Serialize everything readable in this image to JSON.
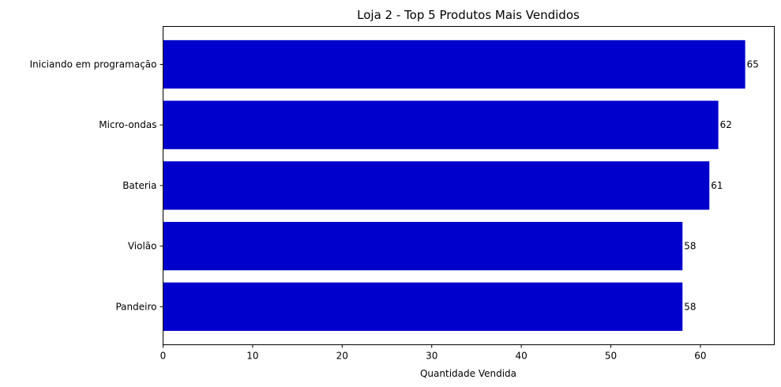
{
  "chart_data": {
    "type": "bar",
    "orientation": "horizontal",
    "title": "Loja 2 - Top 5 Produtos Mais Vendidos",
    "xlabel": "Quantidade Vendida",
    "ylabel": "",
    "categories": [
      "Iniciando em programação",
      "Micro-ondas",
      "Bateria",
      "Violão",
      "Pandeiro"
    ],
    "values": [
      65,
      62,
      61,
      58,
      58
    ],
    "data_labels": [
      "65",
      "62",
      "61",
      "58",
      "58"
    ],
    "xlim": [
      0,
      68.25
    ],
    "x_ticks": [
      0,
      10,
      20,
      30,
      40,
      50,
      60
    ],
    "x_tick_labels": [
      "0",
      "10",
      "20",
      "30",
      "40",
      "50",
      "60"
    ],
    "grid": false,
    "bar_color": "#0000cd"
  }
}
